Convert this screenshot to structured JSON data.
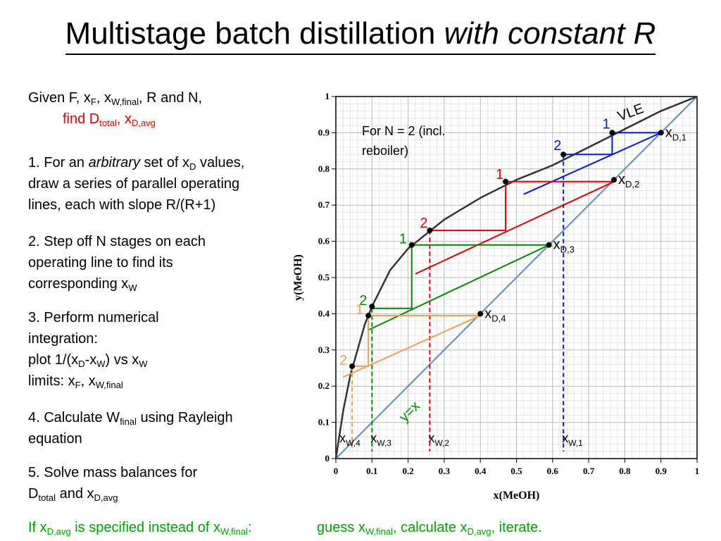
{
  "title": {
    "main": "Multistage batch distillation",
    "emph": "with constant R"
  },
  "given": {
    "t1": "Given F, x",
    "s1": "F",
    "t2": ", x",
    "s2": "W,final",
    "t3": ", R and N,",
    "t4": "find D",
    "s4": "total",
    "t5": ", x",
    "s5": "D,avg"
  },
  "steps": {
    "s1_a": "1. For an ",
    "s1_b": "arbitrary",
    "s1_c": " set of x",
    "s1_d": "D",
    "s1_e": " values,",
    "s1_l2": "draw a series of parallel operating",
    "s1_l3": "lines, each with slope R/(R+1)",
    "s2_l1": "2. Step off N stages on each",
    "s2_l2": "operating line to find its",
    "s2_l3a": "corresponding x",
    "s2_l3b": "W",
    "s3_l1": "3. Perform numerical",
    "s3_l2": "integration:",
    "s3_l3a": "plot 1/(x",
    "s3_l3b": "D",
    "s3_l3c": "-x",
    "s3_l3d": "W",
    "s3_l3e": ") vs x",
    "s3_l3f": "W",
    "s3_l4a": "limits: x",
    "s3_l4b": "F",
    "s3_l4c": ", x",
    "s3_l4d": "W,final",
    "s4_l1a": "4. Calculate W",
    "s4_l1b": "final",
    "s4_l1c": " using Rayleigh",
    "s4_l2": "equation",
    "s5_l1": "5. Solve mass balances for",
    "s5_l2a": "D",
    "s5_l2b": "total",
    "s5_l2c": " and x",
    "s5_l2d": "D,avg"
  },
  "footer": {
    "a": "If x",
    "b": "D,avg",
    "c": " is specified instead of x",
    "d": "W,final",
    "e": ":",
    "f": "guess x",
    "g": "W,final",
    "h": ", calculate x",
    "i": "D,avg",
    "j": ", iterate."
  },
  "chart_data": {
    "type": "line",
    "xlabel": "x(MeOH)",
    "ylabel": "y(MeOH)",
    "xlim": [
      0,
      1
    ],
    "ylim": [
      0,
      1
    ],
    "ticks": [
      "0",
      "0.1",
      "0.2",
      "0.3",
      "0.4",
      "0.5",
      "0.6",
      "0.7",
      "0.8",
      "0.9",
      "1"
    ],
    "grid": true,
    "note": "For N = 2 (incl. reboiler)",
    "vle_label": "VLE",
    "diag_label": "y=x",
    "colors": {
      "vle": "#333333",
      "diag": "#5b8ec4",
      "blue": "#0018e0",
      "red": "#e00000",
      "green": "#008a00",
      "orange": "#f0a050"
    },
    "vle_curve": {
      "x": [
        0,
        0.02,
        0.04,
        0.06,
        0.08,
        0.1,
        0.15,
        0.2,
        0.25,
        0.3,
        0.4,
        0.5,
        0.6,
        0.7,
        0.8,
        0.9,
        1
      ],
      "y": [
        0,
        0.13,
        0.23,
        0.3,
        0.37,
        0.42,
        0.52,
        0.58,
        0.62,
        0.66,
        0.72,
        0.77,
        0.81,
        0.86,
        0.91,
        0.96,
        1
      ]
    },
    "cases": [
      {
        "color": "blue",
        "xD": 0.9,
        "xW": 0.63,
        "xD_label": "x",
        "xD_sub": "D,1",
        "xW_label": "x",
        "xW_sub": "W,1",
        "op_line": [
          [
            0.52,
            0.73
          ],
          [
            0.9,
            0.9
          ]
        ],
        "stages": [
          {
            "label": "1",
            "x": 0.765,
            "y": 0.9
          },
          {
            "label": "2",
            "x": 0.63,
            "y": 0.84
          }
        ],
        "steps": [
          [
            0.9,
            0.9
          ],
          [
            0.765,
            0.9
          ],
          [
            0.765,
            0.84
          ],
          [
            0.63,
            0.84
          ]
        ]
      },
      {
        "color": "red",
        "xD": 0.77,
        "xW": 0.26,
        "xD_label": "x",
        "xD_sub": "D,2",
        "xW_label": "x",
        "xW_sub": "W,2",
        "op_line": [
          [
            0.22,
            0.51
          ],
          [
            0.77,
            0.765
          ]
        ],
        "stages": [
          {
            "label": "1",
            "x": 0.47,
            "y": 0.765
          },
          {
            "label": "2",
            "x": 0.26,
            "y": 0.63
          }
        ],
        "steps": [
          [
            0.77,
            0.765
          ],
          [
            0.47,
            0.765
          ],
          [
            0.47,
            0.63
          ],
          [
            0.26,
            0.63
          ]
        ]
      },
      {
        "color": "green",
        "xD": 0.59,
        "xW": 0.1,
        "xD_label": "x",
        "xD_sub": "D,3",
        "xW_label": "x",
        "xW_sub": "W,3",
        "op_line": [
          [
            0.09,
            0.355
          ],
          [
            0.59,
            0.59
          ]
        ],
        "stages": [
          {
            "label": "1",
            "x": 0.21,
            "y": 0.59
          },
          {
            "label": "2",
            "x": 0.1,
            "y": 0.42
          }
        ],
        "steps": [
          [
            0.59,
            0.59
          ],
          [
            0.21,
            0.59
          ],
          [
            0.21,
            0.415
          ],
          [
            0.1,
            0.415
          ]
        ]
      },
      {
        "color": "orange",
        "xD": 0.4,
        "xW": 0.045,
        "xD_label": "x",
        "xD_sub": "D,4",
        "xW_label": "x",
        "xW_sub": "W,4",
        "op_line": [
          [
            0.02,
            0.225
          ],
          [
            0.4,
            0.395
          ]
        ],
        "stages": [
          {
            "label": "1",
            "x": 0.09,
            "y": 0.395
          },
          {
            "label": "2",
            "x": 0.045,
            "y": 0.255
          }
        ],
        "steps": [
          [
            0.4,
            0.395
          ],
          [
            0.09,
            0.395
          ],
          [
            0.09,
            0.255
          ],
          [
            0.045,
            0.255
          ]
        ]
      }
    ]
  }
}
